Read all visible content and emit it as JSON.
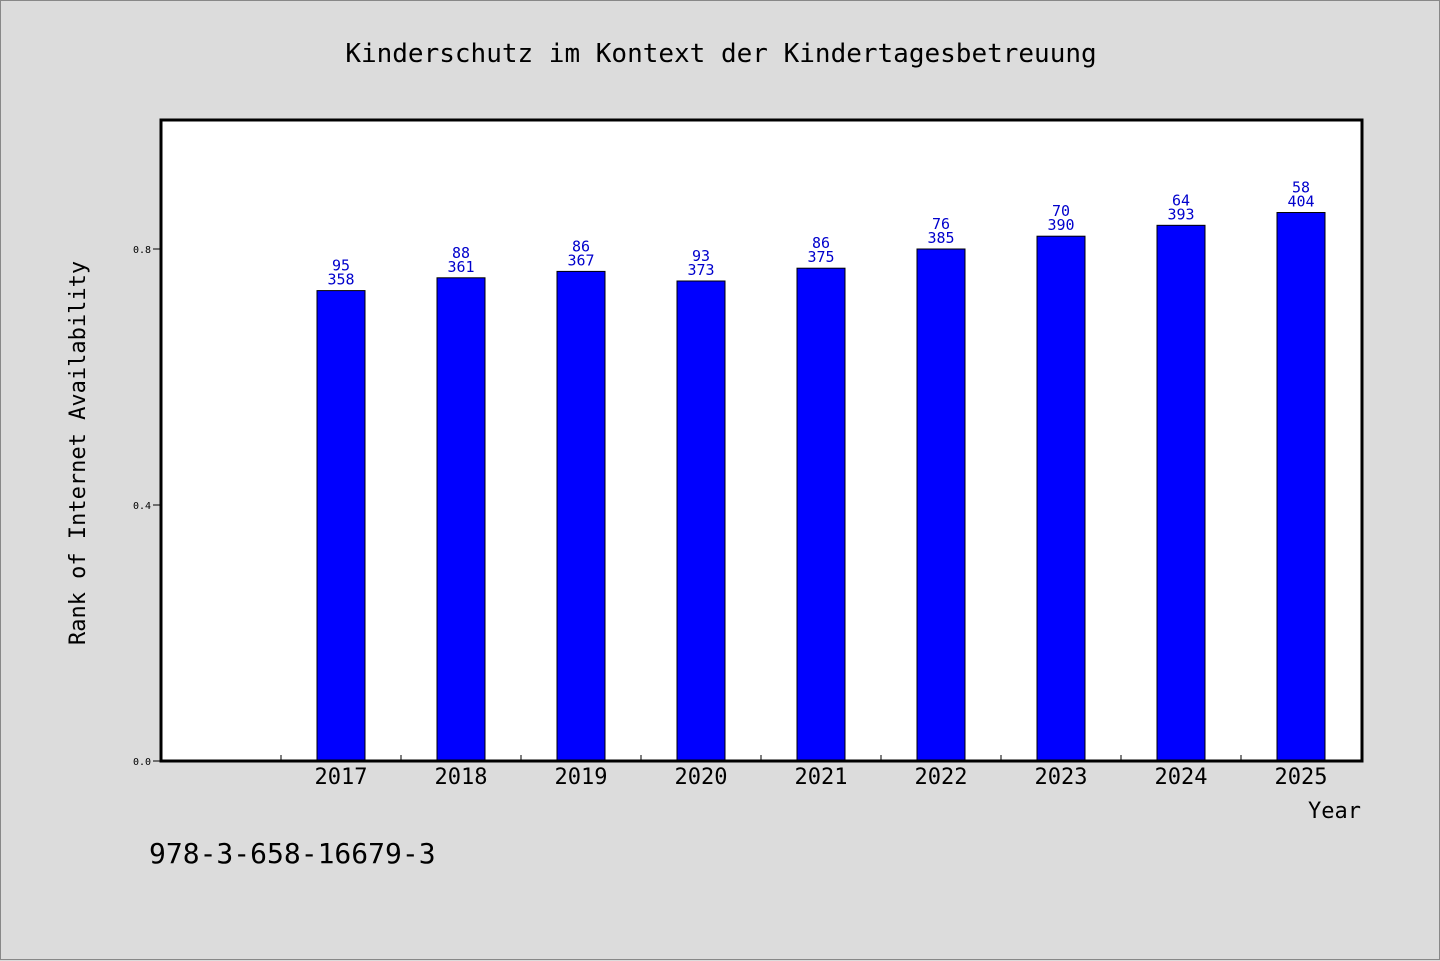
{
  "chart_data": {
    "type": "bar",
    "title": "Kinderschutz im Kontext der Kindertagesbetreuung",
    "xlabel": "Year",
    "ylabel": "Rank of Internet Availability",
    "categories": [
      "2017",
      "2018",
      "2019",
      "2020",
      "2021",
      "2022",
      "2023",
      "2024",
      "2025"
    ],
    "series": [
      {
        "values": [
          0.735,
          0.755,
          0.765,
          0.75,
          0.77,
          0.8,
          0.82,
          0.837,
          0.857
        ],
        "color": "#0000ff"
      }
    ],
    "data_labels_top": [
      "95",
      "88",
      "86",
      "93",
      "86",
      "76",
      "70",
      "64",
      "58"
    ],
    "data_labels_bottom": [
      "358",
      "361",
      "367",
      "373",
      "375",
      "385",
      "390",
      "393",
      "404"
    ],
    "yticks": [
      "0.0",
      "0.4",
      "0.8"
    ],
    "ylim": [
      0,
      1.0
    ],
    "grid": false,
    "legend": "none"
  },
  "footer": {
    "isbn": "978-3-658-16679-3"
  },
  "colors": {
    "background": "#dcdcdc",
    "plot_background": "#ffffff",
    "bar": "#0000ff",
    "data_label": "#0000cc"
  }
}
